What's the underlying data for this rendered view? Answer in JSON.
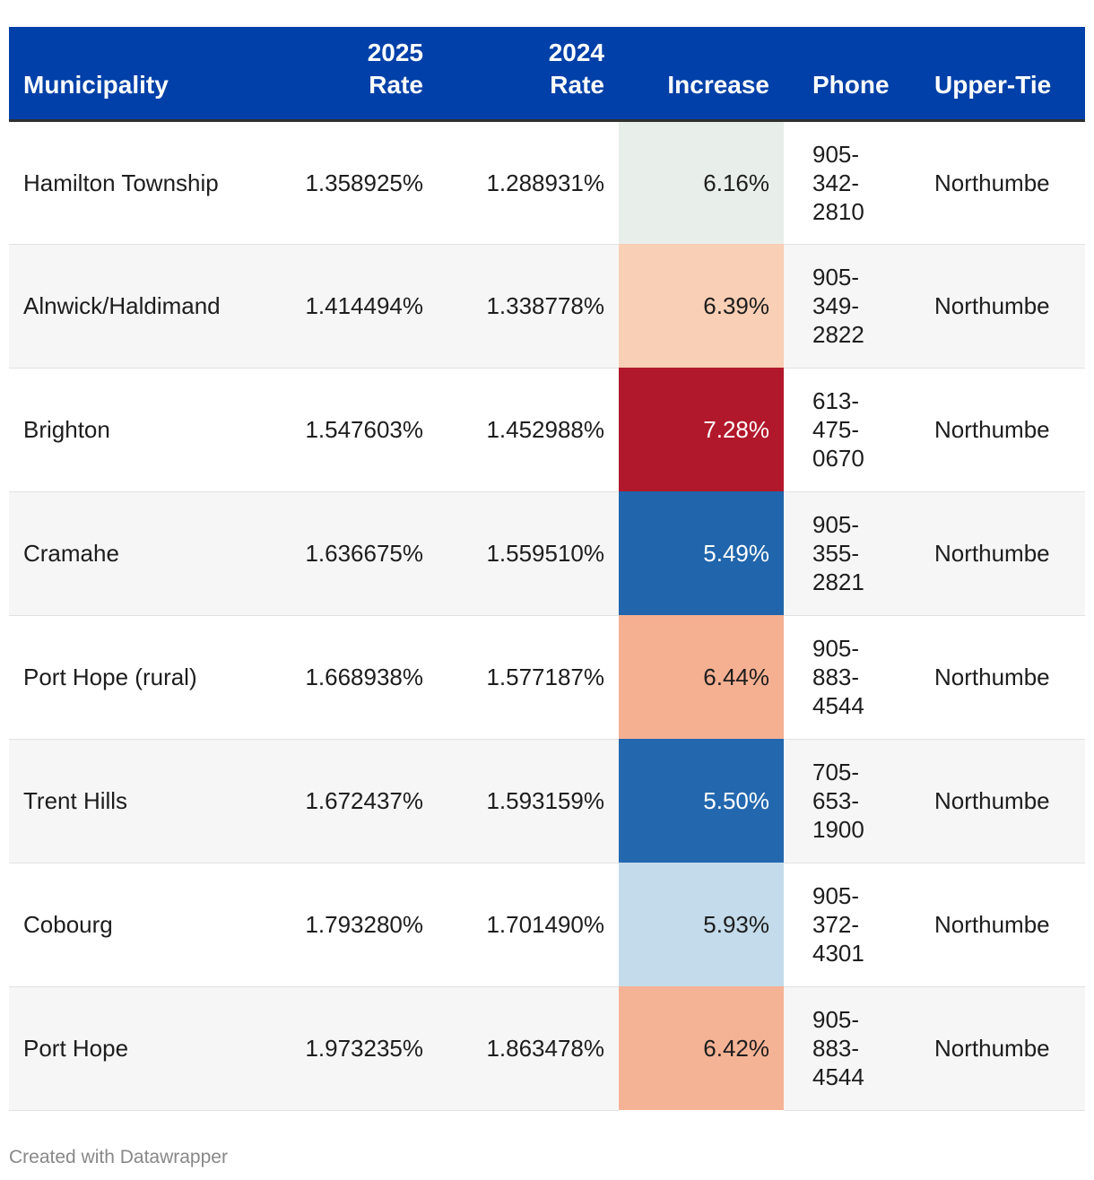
{
  "chart_data": {
    "type": "table",
    "columns": [
      "Municipality",
      "2025 Rate",
      "2024 Rate",
      "Increase",
      "Phone",
      "Upper-Tie"
    ],
    "header": {
      "municipality": "Municipality",
      "rate_2025": [
        "2025",
        "Rate"
      ],
      "rate_2024": [
        "2024",
        "Rate"
      ],
      "increase": "Increase",
      "phone": "Phone",
      "upper_tier": "Upper-Tie"
    },
    "rows": [
      {
        "municipality": "Hamilton Township",
        "rate_2025": "1.358925%",
        "rate_2024": "1.288931%",
        "increase": "6.16%",
        "increase_value": 6.16,
        "increase_bg": "#e8eeea",
        "increase_fg": "#1d1d1d",
        "phone": [
          "905-",
          "342-",
          "2810"
        ],
        "upper_tier": "Northumbe"
      },
      {
        "municipality": "Alnwick/Haldimand",
        "rate_2025": "1.414494%",
        "rate_2024": "1.338778%",
        "increase": "6.39%",
        "increase_value": 6.39,
        "increase_bg": "#f9cfb6",
        "increase_fg": "#1d1d1d",
        "phone": [
          "905-",
          "349-",
          "2822"
        ],
        "upper_tier": "Northumbe"
      },
      {
        "municipality": "Brighton",
        "rate_2025": "1.547603%",
        "rate_2024": "1.452988%",
        "increase": "7.28%",
        "increase_value": 7.28,
        "increase_bg": "#b2182b",
        "increase_fg": "#ffffff",
        "phone": [
          "613-",
          "475-",
          "0670"
        ],
        "upper_tier": "Northumbe"
      },
      {
        "municipality": "Cramahe",
        "rate_2025": "1.636675%",
        "rate_2024": "1.559510%",
        "increase": "5.49%",
        "increase_value": 5.49,
        "increase_bg": "#2166ac",
        "increase_fg": "#ffffff",
        "phone": [
          "905-",
          "355-",
          "2821"
        ],
        "upper_tier": "Northumbe"
      },
      {
        "municipality": "Port Hope (rural)",
        "rate_2025": "1.668938%",
        "rate_2024": "1.577187%",
        "increase": "6.44%",
        "increase_value": 6.44,
        "increase_bg": "#f5b092",
        "increase_fg": "#1d1d1d",
        "phone": [
          "905-",
          "883-",
          "4544"
        ],
        "upper_tier": "Northumbe"
      },
      {
        "municipality": "Trent Hills",
        "rate_2025": "1.672437%",
        "rate_2024": "1.593159%",
        "increase": "5.50%",
        "increase_value": 5.5,
        "increase_bg": "#2368af",
        "increase_fg": "#ffffff",
        "phone": [
          "705-",
          "653-",
          "1900"
        ],
        "upper_tier": "Northumbe"
      },
      {
        "municipality": "Cobourg",
        "rate_2025": "1.793280%",
        "rate_2024": "1.701490%",
        "increase": "5.93%",
        "increase_value": 5.93,
        "increase_bg": "#c3dbea",
        "increase_fg": "#1d1d1d",
        "phone": [
          "905-",
          "372-",
          "4301"
        ],
        "upper_tier": "Northumbe"
      },
      {
        "municipality": "Port Hope",
        "rate_2025": "1.973235%",
        "rate_2024": "1.863478%",
        "increase": "6.42%",
        "increase_value": 6.42,
        "increase_bg": "#f5b395",
        "increase_fg": "#1d1d1d",
        "phone": [
          "905-",
          "883-",
          "4544"
        ],
        "upper_tier": "Northumbe"
      }
    ]
  },
  "colors": {
    "header_bg": "#0040a8",
    "header_text": "#ffffff",
    "row_alt_bg": "#f6f6f6"
  },
  "footer": {
    "credit": "Created with Datawrapper"
  }
}
